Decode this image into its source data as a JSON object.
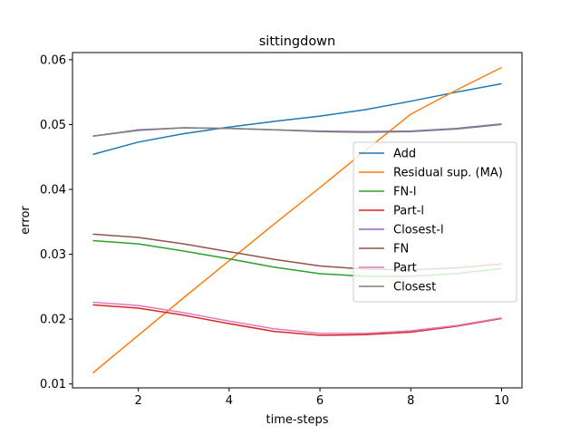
{
  "chart_data": {
    "type": "line",
    "title": "sittingdown",
    "xlabel": "time-steps",
    "ylabel": "error",
    "x": [
      1,
      2,
      3,
      4,
      5,
      6,
      7,
      8,
      9,
      10
    ],
    "xlim": [
      0.55,
      10.45
    ],
    "ylim": [
      0.0094,
      0.0611
    ],
    "xticks": [
      2,
      4,
      6,
      8,
      10
    ],
    "xtick_labels": [
      "2",
      "4",
      "6",
      "8",
      "10"
    ],
    "yticks": [
      0.01,
      0.02,
      0.03,
      0.04,
      0.05,
      0.06
    ],
    "ytick_labels": [
      "0.01",
      "0.02",
      "0.03",
      "0.04",
      "0.05",
      "0.06"
    ],
    "grid": false,
    "legend_position": "center-right",
    "series": [
      {
        "name": "Add",
        "color": "#1f77b4",
        "values": [
          0.0454,
          0.0473,
          0.0486,
          0.0496,
          0.0505,
          0.0513,
          0.0523,
          0.0536,
          0.055,
          0.0563
        ]
      },
      {
        "name": "Residual sup. (MA)",
        "color": "#ff7f0e",
        "values": [
          0.0117,
          0.0175,
          0.0233,
          0.029,
          0.0347,
          0.0403,
          0.046,
          0.0516,
          0.0553,
          0.0588
        ]
      },
      {
        "name": "FN-l",
        "color": "#2ca02c",
        "values": [
          0.0321,
          0.0316,
          0.0305,
          0.0293,
          0.028,
          0.027,
          0.0266,
          0.0266,
          0.027,
          0.0278
        ]
      },
      {
        "name": "Part-l",
        "color": "#d62728",
        "values": [
          0.0222,
          0.0217,
          0.0206,
          0.0193,
          0.0181,
          0.0175,
          0.0176,
          0.018,
          0.0189,
          0.0201
        ]
      },
      {
        "name": "Closest-l",
        "color": "#9467bd",
        "values": [
          0.0482,
          0.0492,
          0.0495,
          0.0494,
          0.0492,
          0.049,
          0.0489,
          0.049,
          0.0494,
          0.0501
        ]
      },
      {
        "name": "FN",
        "color": "#8c564b",
        "values": [
          0.0331,
          0.0326,
          0.0316,
          0.0304,
          0.0292,
          0.0282,
          0.0277,
          0.0276,
          0.0279,
          0.0285
        ]
      },
      {
        "name": "Part",
        "color": "#e377c2",
        "values": [
          0.0226,
          0.0221,
          0.021,
          0.0197,
          0.0185,
          0.0178,
          0.0178,
          0.0182,
          0.019,
          0.0202
        ]
      },
      {
        "name": "Closest",
        "color": "#7f7f7f",
        "values": [
          0.0482,
          0.0491,
          0.0495,
          0.0494,
          0.0492,
          0.0489,
          0.0488,
          0.0489,
          0.0493,
          0.05
        ]
      }
    ]
  }
}
